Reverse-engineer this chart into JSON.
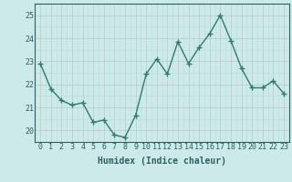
{
  "x": [
    0,
    1,
    2,
    3,
    4,
    5,
    6,
    7,
    8,
    9,
    10,
    11,
    12,
    13,
    14,
    15,
    16,
    17,
    18,
    19,
    20,
    21,
    22,
    23
  ],
  "y": [
    22.9,
    21.8,
    21.3,
    21.1,
    21.2,
    20.35,
    20.45,
    19.8,
    19.7,
    20.65,
    22.45,
    23.1,
    22.45,
    23.85,
    22.9,
    23.6,
    24.2,
    25.0,
    23.9,
    22.7,
    21.85,
    21.85,
    22.15,
    21.6
  ],
  "line_color": "#2e7d6e",
  "marker": "+",
  "marker_size": 4,
  "bg_color": "#cceaea",
  "grid_color": "#aacfcf",
  "grid_color_major": "#b8b8b8",
  "xlabel": "Humidex (Indice chaleur)",
  "ylim": [
    19.5,
    25.5
  ],
  "xlim": [
    -0.5,
    23.5
  ],
  "yticks": [
    20,
    21,
    22,
    23,
    24,
    25
  ],
  "xticks": [
    0,
    1,
    2,
    3,
    4,
    5,
    6,
    7,
    8,
    9,
    10,
    11,
    12,
    13,
    14,
    15,
    16,
    17,
    18,
    19,
    20,
    21,
    22,
    23
  ],
  "tick_fontsize": 6,
  "label_fontsize": 7,
  "linewidth": 1.0
}
